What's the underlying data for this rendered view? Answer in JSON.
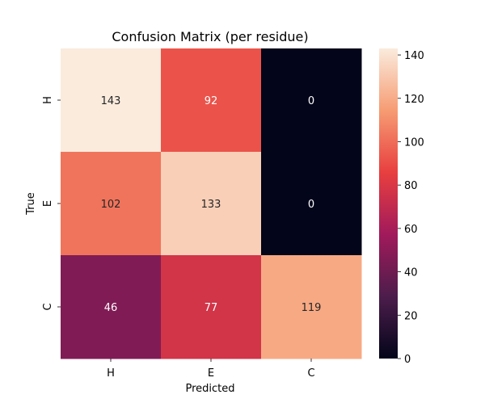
{
  "chart_data": {
    "type": "heatmap",
    "title": "Confusion Matrix (per residue)",
    "xlabel": "Predicted",
    "ylabel": "True",
    "x_categories": [
      "H",
      "E",
      "C"
    ],
    "y_categories": [
      "H",
      "E",
      "C"
    ],
    "values": [
      [
        143,
        92,
        0
      ],
      [
        102,
        133,
        0
      ],
      [
        46,
        77,
        119
      ]
    ],
    "color_range": [
      0,
      143
    ],
    "colorbar_ticks": [
      0,
      20,
      40,
      60,
      80,
      100,
      120,
      140
    ],
    "colormap": "rocket",
    "colormap_stops": [
      "#03051a",
      "#4c1d4b",
      "#a11a5b",
      "#e83f3f",
      "#f69c73",
      "#faebdd"
    ]
  }
}
